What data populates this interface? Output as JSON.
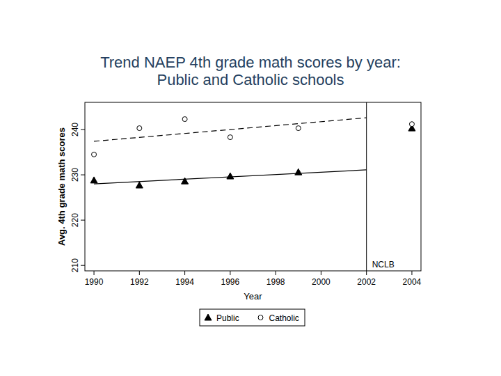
{
  "chart_data": {
    "type": "scatter",
    "title": [
      "Trend NAEP 4th grade math scores by year:",
      "Public and Catholic schools"
    ],
    "x_label": "Year",
    "y_label": "Avg. 4th grade math scores",
    "xlim": [
      1989.6,
      2004.4
    ],
    "xticks": [
      1990,
      1992,
      1994,
      1996,
      1998,
      2000,
      2002,
      2004
    ],
    "ylim": [
      208.8,
      246
    ],
    "yticks": [
      210,
      220,
      230,
      240
    ],
    "grid": false,
    "legend": "bottom",
    "series": [
      {
        "name": "Public",
        "color": "#000000",
        "marker": "triangle",
        "line_style": "solid",
        "x": [
          1990,
          1992,
          1994,
          1996,
          1999,
          2004
        ],
        "values": [
          228.8,
          227.7,
          228.6,
          229.7,
          230.6,
          240.3
        ],
        "trend": {
          "x": [
            1990,
            2002
          ],
          "values": [
            228.0,
            231.1
          ]
        }
      },
      {
        "name": "Catholic",
        "color": "#000000",
        "marker": "circle",
        "line_style": "dashed",
        "x": [
          1990,
          1992,
          1994,
          1996,
          1999,
          2004
        ],
        "values": [
          234.5,
          240.3,
          242.3,
          238.3,
          240.3,
          241.2
        ],
        "trend": {
          "x": [
            1990,
            2002
          ],
          "values": [
            237.4,
            242.6
          ]
        }
      }
    ],
    "annotations": [
      {
        "x": 2002,
        "label": "NCLB"
      }
    ]
  }
}
